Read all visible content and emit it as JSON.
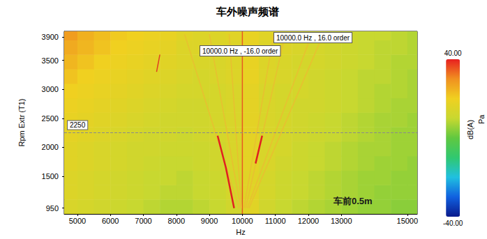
{
  "chart_data": {
    "type": "heatmap",
    "title": "车外噪声频谱",
    "x_label": "Hz",
    "y_label": "Rpm Extr (T1)",
    "xlim": [
      4600,
      15300
    ],
    "xticks": [
      5000,
      6000,
      7000,
      8000,
      9000,
      10000,
      11000,
      12000,
      13000,
      15000
    ],
    "ylim": [
      850,
      4000
    ],
    "yticks": [
      950,
      1500,
      2000,
      2500,
      3000,
      3500,
      3900
    ],
    "grid": false,
    "x_edges": [
      4500,
      5000,
      5500,
      6000,
      6500,
      7000,
      7500,
      8000,
      8500,
      9000,
      9500,
      10000,
      10500,
      11000,
      11500,
      12000,
      12500,
      13000,
      13500,
      14000,
      14500,
      15000,
      15500
    ],
    "y_edges": [
      850,
      1100,
      1350,
      1600,
      1850,
      2100,
      2350,
      2600,
      2850,
      3100,
      3350,
      3600,
      3850,
      4000
    ],
    "cells": [
      [
        14,
        13,
        12,
        11,
        10,
        9,
        8,
        8,
        9,
        10,
        12,
        16,
        12,
        10,
        9,
        8,
        7,
        6,
        5,
        5,
        4,
        4
      ],
      [
        15,
        14,
        13,
        12,
        11,
        10,
        9,
        9,
        10,
        11,
        13,
        16,
        13,
        11,
        10,
        9,
        8,
        7,
        6,
        5,
        5,
        5
      ],
      [
        15,
        14,
        13,
        12,
        11,
        10,
        10,
        9,
        10,
        11,
        13,
        16,
        13,
        11,
        10,
        9,
        8,
        7,
        6,
        6,
        5,
        5
      ],
      [
        16,
        15,
        14,
        13,
        12,
        11,
        10,
        10,
        11,
        12,
        14,
        17,
        14,
        12,
        11,
        10,
        9,
        8,
        7,
        6,
        6,
        5
      ],
      [
        16,
        15,
        14,
        13,
        12,
        12,
        11,
        11,
        11,
        12,
        14,
        17,
        14,
        13,
        11,
        10,
        9,
        8,
        7,
        7,
        6,
        6
      ],
      [
        17,
        16,
        15,
        14,
        13,
        12,
        12,
        11,
        12,
        13,
        14,
        17,
        14,
        13,
        12,
        11,
        10,
        9,
        8,
        7,
        6,
        6
      ],
      [
        18,
        17,
        16,
        15,
        14,
        13,
        12,
        12,
        12,
        13,
        14,
        17,
        14,
        13,
        12,
        11,
        10,
        9,
        8,
        7,
        7,
        6
      ],
      [
        19,
        18,
        17,
        16,
        15,
        14,
        13,
        12,
        12,
        13,
        14,
        17,
        14,
        13,
        12,
        12,
        11,
        10,
        9,
        8,
        7,
        7
      ],
      [
        20,
        19,
        18,
        17,
        16,
        15,
        14,
        13,
        13,
        13,
        14,
        17,
        14,
        13,
        13,
        12,
        11,
        10,
        9,
        8,
        8,
        7
      ],
      [
        22,
        20,
        19,
        18,
        17,
        16,
        15,
        14,
        13,
        14,
        15,
        18,
        15,
        14,
        13,
        12,
        11,
        10,
        9,
        9,
        8,
        7
      ],
      [
        24,
        22,
        20,
        19,
        18,
        17,
        16,
        15,
        14,
        14,
        15,
        18,
        15,
        14,
        13,
        13,
        12,
        11,
        10,
        9,
        8,
        8
      ],
      [
        26,
        24,
        22,
        20,
        19,
        18,
        17,
        15,
        15,
        15,
        15,
        18,
        15,
        15,
        14,
        13,
        12,
        11,
        10,
        9,
        9,
        8
      ],
      [
        28,
        25,
        23,
        21,
        20,
        19,
        18,
        16,
        15,
        15,
        16,
        18,
        16,
        15,
        14,
        13,
        12,
        11,
        10,
        10,
        9,
        8
      ]
    ],
    "colorbar": {
      "range": [
        -40,
        40
      ],
      "ticks": [
        {
          "value": 40,
          "label": "40.00"
        },
        {
          "value": -40,
          "label": "-40.00"
        }
      ],
      "label": "dB(A)",
      "unit": "Pa"
    },
    "series": [
      {
        "type": "line",
        "color": "#e85a20",
        "values": [
          [
            10000,
            850
          ],
          [
            10000,
            4000
          ]
        ]
      },
      {
        "type": "line",
        "color": "#e8c030",
        "values": [
          [
            9900,
            950
          ],
          [
            8250,
            3950
          ]
        ]
      },
      {
        "type": "line",
        "color": "#e8c030",
        "values": [
          [
            9950,
            950
          ],
          [
            9000,
            3950
          ]
        ]
      },
      {
        "type": "line",
        "color": "#e8c030",
        "values": [
          [
            9970,
            950
          ],
          [
            9600,
            3950
          ]
        ]
      },
      {
        "type": "line",
        "color": "#e8c030",
        "values": [
          [
            10050,
            950
          ],
          [
            10950,
            3950
          ]
        ]
      },
      {
        "type": "line",
        "color": "#e8c030",
        "values": [
          [
            10100,
            950
          ],
          [
            11300,
            3950
          ]
        ]
      },
      {
        "type": "line",
        "color": "#e8c030",
        "values": [
          [
            10150,
            950
          ],
          [
            12100,
            3950
          ]
        ]
      },
      {
        "type": "line",
        "color": "#e8c030",
        "values": [
          [
            10200,
            950
          ],
          [
            12450,
            3950
          ]
        ]
      },
      {
        "type": "line",
        "color": "#e02020",
        "values": [
          [
            9750,
            950
          ],
          [
            9500,
            1650
          ],
          [
            9250,
            2200
          ]
        ]
      },
      {
        "type": "line",
        "color": "#e02020",
        "values": [
          [
            10400,
            1720
          ],
          [
            10600,
            2200
          ]
        ]
      },
      {
        "type": "line",
        "color": "#e04020",
        "values": [
          [
            7400,
            3300
          ],
          [
            7500,
            3600
          ]
        ]
      }
    ],
    "markers": [
      {
        "axis": "y",
        "value": 2250,
        "line_style": "dashed"
      }
    ],
    "annotations": [
      {
        "text": "10000.0 Hz , 16.0 order"
      },
      {
        "text": "10000.0 Hz , -16.0 order"
      },
      {
        "text": "车前0.5m"
      }
    ]
  }
}
